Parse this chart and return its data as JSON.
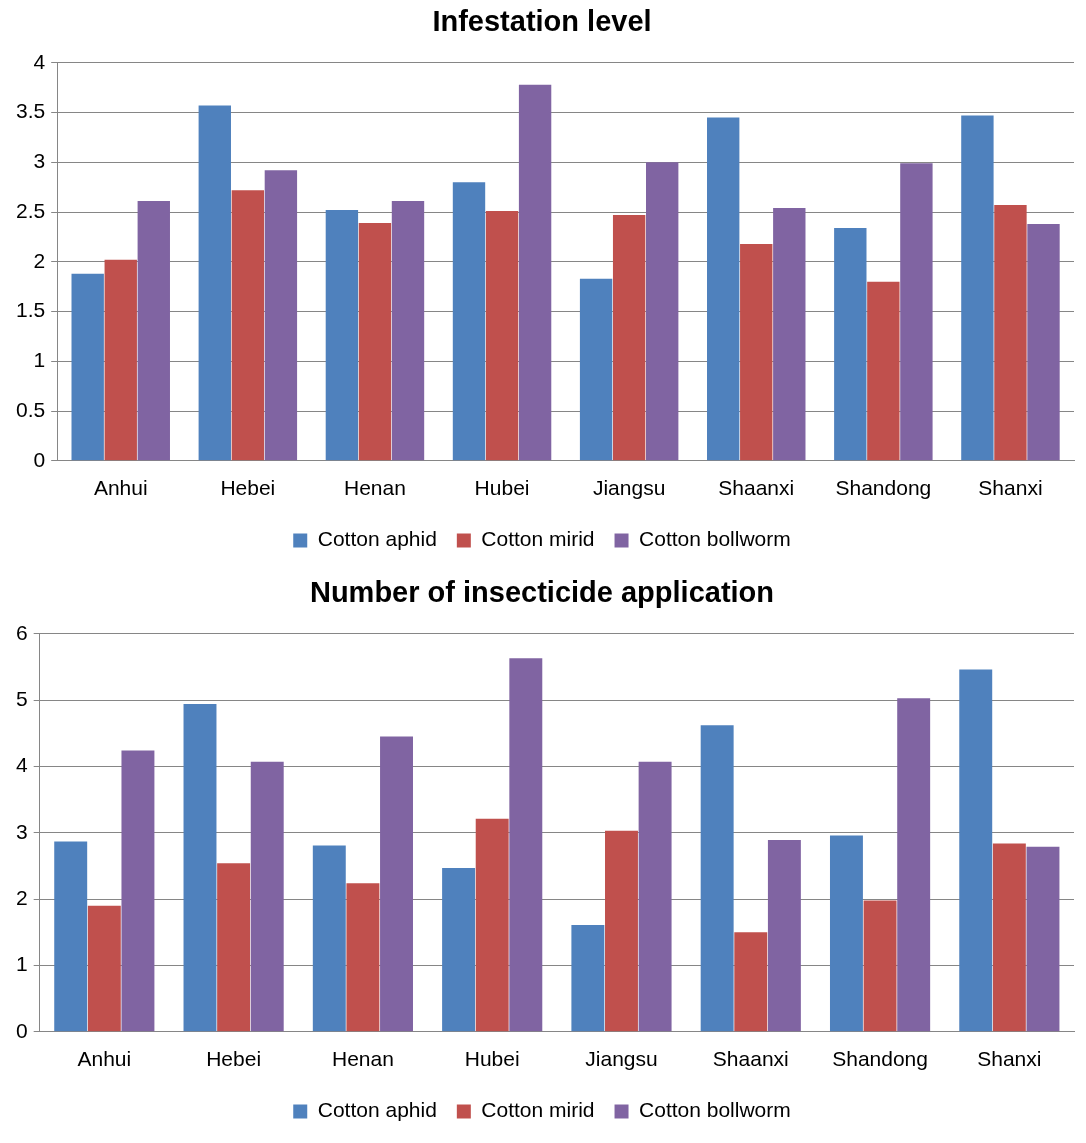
{
  "chart_data": [
    {
      "type": "bar",
      "title": "Infestation level",
      "categories": [
        "Anhui",
        "Hebei",
        "Henan",
        "Hubei",
        "Jiangsu",
        "Shaanxi",
        "Shandong",
        "Shanxi"
      ],
      "series": [
        {
          "name": "Cotton aphid",
          "color": "#4f81bd",
          "values": [
            1.88,
            3.57,
            2.52,
            2.8,
            1.83,
            3.45,
            2.34,
            3.47
          ]
        },
        {
          "name": "Cotton mirid",
          "color": "#c0504d",
          "values": [
            2.02,
            2.72,
            2.39,
            2.51,
            2.47,
            2.18,
            1.8,
            2.57
          ]
        },
        {
          "name": "Cotton bollworm",
          "color": "#8064a2",
          "values": [
            2.61,
            2.92,
            2.61,
            3.78,
            3.0,
            2.54,
            2.99,
            2.38
          ]
        }
      ],
      "ylim": [
        0,
        4
      ],
      "yticks": [
        0,
        0.5,
        1,
        1.5,
        2,
        2.5,
        3,
        3.5,
        4
      ],
      "grid": "y",
      "legend": "bottom"
    },
    {
      "type": "bar",
      "title": "Number of insecticide application",
      "categories": [
        "Anhui",
        "Hebei",
        "Henan",
        "Hubei",
        "Jiangsu",
        "Shaanxi",
        "Shandong",
        "Shanxi"
      ],
      "series": [
        {
          "name": "Cotton aphid",
          "color": "#4f81bd",
          "values": [
            2.87,
            4.94,
            2.81,
            2.47,
            1.61,
            4.62,
            2.96,
            5.46
          ]
        },
        {
          "name": "Cotton mirid",
          "color": "#c0504d",
          "values": [
            1.9,
            2.54,
            2.24,
            3.21,
            3.03,
            1.5,
            1.98,
            2.84
          ]
        },
        {
          "name": "Cotton bollworm",
          "color": "#8064a2",
          "values": [
            4.24,
            4.07,
            4.45,
            5.63,
            4.07,
            2.89,
            5.03,
            2.79
          ]
        }
      ],
      "ylim": [
        0,
        6
      ],
      "yticks": [
        0,
        1,
        2,
        3,
        4,
        5,
        6
      ],
      "grid": "y",
      "legend": "bottom"
    }
  ]
}
